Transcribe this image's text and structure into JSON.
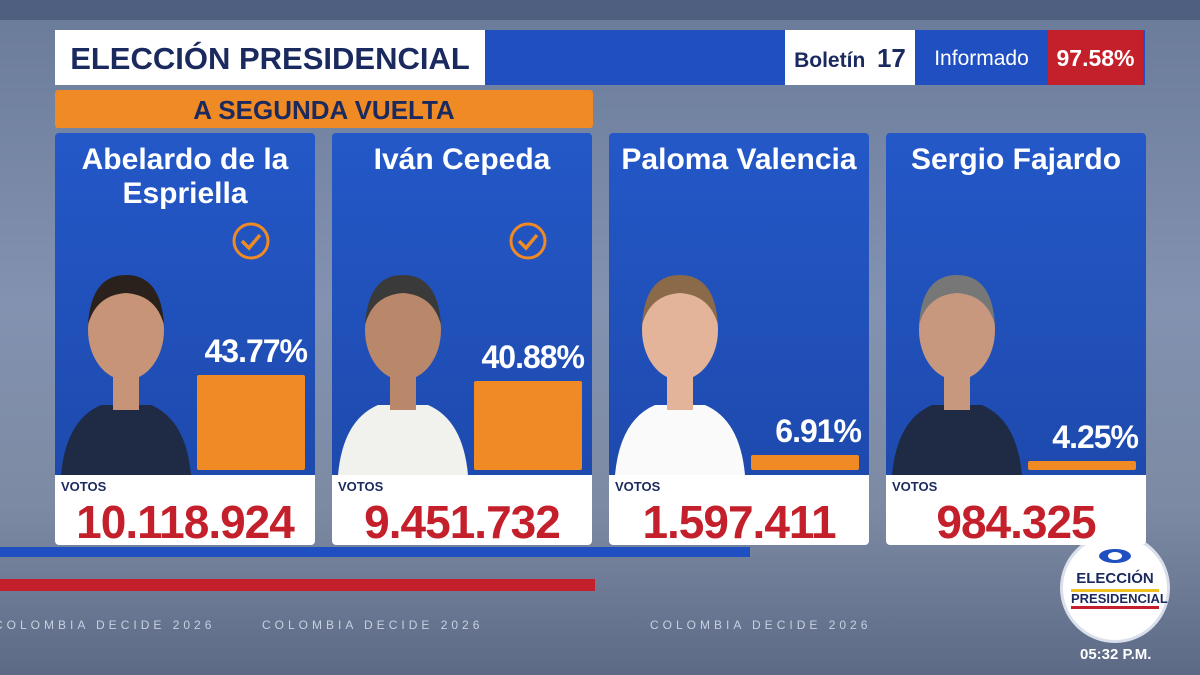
{
  "header": {
    "title": "ELECCIÓN PRESIDENCIAL",
    "bulletin_label": "Boletín",
    "bulletin_number": "17",
    "reported_label": "Informado",
    "reported_value": "97.58%",
    "banner": "A SEGUNDA VUELTA"
  },
  "candidates": [
    {
      "name": "Abelardo de la Espriella",
      "share": 43.77,
      "share_label": "43.77%",
      "votes_label": "VOTOS",
      "votes": "10.118.924",
      "qualified": true
    },
    {
      "name": "Iván Cepeda",
      "share": 40.88,
      "share_label": "40.88%",
      "votes_label": "VOTOS",
      "votes": "9.451.732",
      "qualified": true
    },
    {
      "name": "Paloma Valencia",
      "share": 6.91,
      "share_label": "6.91%",
      "votes_label": "VOTOS",
      "votes": "1.597.411",
      "qualified": false
    },
    {
      "name": "Sergio Fajardo",
      "share": 4.25,
      "share_label": "4.25%",
      "votes_label": "VOTOS",
      "votes": "984.325",
      "qualified": false
    }
  ],
  "footer": {
    "tagline": "COLOMBIA DECIDE 2026",
    "logo_line1": "ELECCIÓN",
    "logo_line2": "PRESIDENCIAL",
    "time": "05:32 P.M."
  }
}
